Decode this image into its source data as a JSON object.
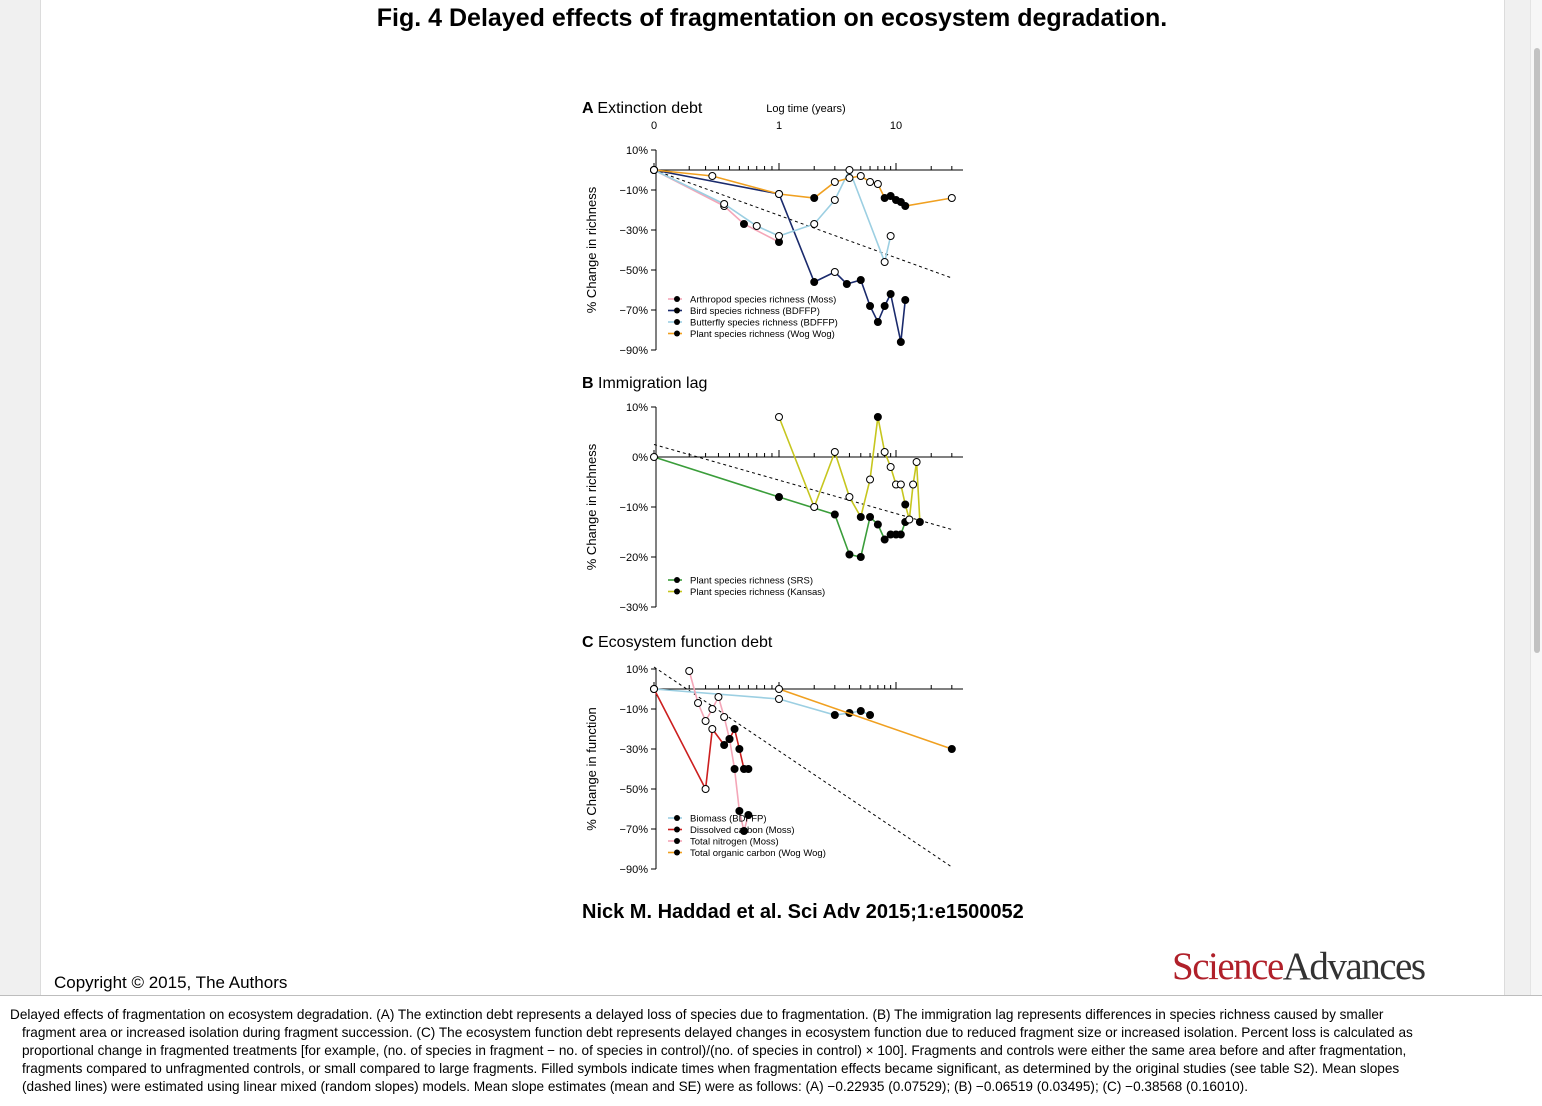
{
  "slide": {
    "title": "Fig. 4 Delayed effects of fragmentation on ecosystem degradation.",
    "citation": "Nick M. Haddad et al. Sci Adv 2015;1:e1500052",
    "copyright": "Copyright © 2015, The Authors",
    "logo_science": "Science",
    "logo_advances": "Advances"
  },
  "caption": {
    "text": "Delayed effects of fragmentation on ecosystem degradation. (A) The extinction debt represents a delayed loss of species due to fragmentation. (B) The immigration lag represents differences in species richness caused by smaller fragment area or increased isolation during fragment succession. (C) The ecosystem function debt represents delayed changes in ecosystem function due to reduced fragment size or increased isolation. Percent loss is calculated as proportional change in fragmented treatments [for example, (no. of species in fragment − no. of species in control)/(no. of species in control) × 100]. Fragments and controls were either the same area before and after fragmentation, fragments compared to unfragmented controls, or small compared to large fragments. Filled symbols indicate times when fragmentation effects became significant, as determined by the original studies (see table S2). Mean slopes (dashed lines) were estimated using linear mixed (random slopes) models. Mean slope estimates (mean and SE) were as follows: (A) −0.22935 (0.07529); (B) −0.06519 (0.03495); (C) −0.38568 (0.16010).",
    "lines": [
      "Delayed effects of fragmentation on ecosystem degradation. (A) The extinction debt represents a delayed loss of species due to fragmentation. (B) The immigration lag represents differences in species richness caused by smaller",
      "fragment area or increased isolation during fragment succession. (C) The ecosystem function debt represents delayed changes in ecosystem function due to reduced fragment size or increased isolation. Percent loss is calculated as",
      "proportional change in fragmented treatments [for example, (no. of species in fragment − no. of species in control)/(no. of species in control) × 100]. Fragments and controls were either the same area before and after fragmentation,",
      "fragments compared to unfragmented controls, or small compared to large fragments. Filled symbols indicate times when fragmentation effects became significant, as determined by the original studies (see table S2). Mean slopes",
      "(dashed lines) were estimated using linear mixed (random slopes) models. Mean slope estimates (mean and SE) were as follows: (A) −0.22935 (0.07529); (B) −0.06519 (0.03495); (C) −0.38568 (0.16010)."
    ]
  },
  "chart_data": [
    {
      "type": "line",
      "panel": "A",
      "title": "Extinction debt",
      "xlabel": "Log time (years)",
      "ylabel": "% Change in richness",
      "x_scale": "log",
      "x_ticks": [
        "0",
        "1",
        "10"
      ],
      "y_ticks": [
        "10%",
        "−10%",
        "−30%",
        "−50%",
        "−70%",
        "−90%"
      ],
      "ylim": [
        -90,
        10
      ],
      "xlim": [
        0,
        30
      ],
      "legend_position": "bottom-left",
      "series": [
        {
          "name": "Arthropod species richness (Moss)",
          "color": "#f4a6b8",
          "x": [
            0,
            0.35,
            0.55,
            1.0
          ],
          "y": [
            0,
            -18,
            -27,
            -36
          ],
          "filled": [
            false,
            false,
            true,
            true
          ]
        },
        {
          "name": "Bird species richness (BDFFP)",
          "color": "#1a2a6c",
          "x": [
            0,
            1.0,
            2.0,
            3.0,
            3.8,
            5.0,
            6.0,
            7.0,
            8.0,
            9.0,
            11.0,
            12.0
          ],
          "y": [
            0,
            -12,
            -56,
            -51,
            -57,
            -55,
            -68,
            -76,
            -68,
            -62,
            -86,
            -65
          ],
          "filled": [
            false,
            false,
            true,
            false,
            true,
            true,
            true,
            true,
            true,
            true,
            true,
            true
          ]
        },
        {
          "name": "Butterfly species richness (BDFFP)",
          "color": "#9ccfe2",
          "x": [
            0,
            0.35,
            0.7,
            1.0,
            2.0,
            3.0,
            4.0,
            8.0,
            9.0
          ],
          "y": [
            0,
            -17,
            -28,
            -33,
            -27,
            -15,
            0,
            -46,
            -33
          ],
          "filled": [
            false,
            false,
            false,
            false,
            false,
            false,
            false,
            false,
            false
          ]
        },
        {
          "name": "Plant species richness (Wog Wog)",
          "color": "#f0a020",
          "x": [
            0,
            0.25,
            1.0,
            2.0,
            3.0,
            4.0,
            5.0,
            6.0,
            7.0,
            8.0,
            9.0,
            10.0,
            11.0,
            12.0,
            30.0
          ],
          "y": [
            0,
            -3,
            -12,
            -14,
            -6,
            -4,
            -3,
            -6,
            -7,
            -14,
            -13,
            -15,
            -16,
            -18,
            -14
          ],
          "filled": [
            false,
            false,
            false,
            true,
            false,
            false,
            false,
            false,
            false,
            true,
            true,
            true,
            true,
            true,
            false
          ]
        }
      ],
      "mean_slope_line": {
        "from": [
          0,
          0
        ],
        "to": [
          30,
          -54
        ],
        "style": "dashed"
      }
    },
    {
      "type": "line",
      "panel": "B",
      "title": "Immigration lag",
      "ylabel": "% Change in richness",
      "x_scale": "log",
      "y_ticks": [
        "10%",
        "0%",
        "−10%",
        "−20%",
        "−30%"
      ],
      "ylim": [
        -30,
        10
      ],
      "xlim": [
        0,
        30
      ],
      "legend_position": "bottom-left",
      "series": [
        {
          "name": "Plant species richness (SRS)",
          "color": "#3a9d3a",
          "x": [
            0,
            1.0,
            3.0,
            4.0,
            5.0,
            6.0,
            7.0,
            8.0,
            9.0,
            10.0,
            11.0,
            12.0
          ],
          "y": [
            0,
            -8,
            -11.5,
            -19.5,
            -20,
            -12,
            -13.5,
            -16.5,
            -15.5,
            -15.5,
            -15.5,
            -13
          ],
          "filled": [
            false,
            true,
            true,
            true,
            true,
            true,
            true,
            true,
            true,
            true,
            true,
            true
          ]
        },
        {
          "name": "Plant species richness (Kansas)",
          "color": "#c6c61e",
          "x": [
            1.0,
            2.0,
            3.0,
            4.0,
            5.0,
            6.0,
            7.0,
            8.0,
            9.0,
            10.0,
            11.0,
            12.0,
            13.0,
            14.0,
            15.0,
            16.0
          ],
          "y": [
            8,
            -10,
            1,
            -8,
            -12,
            -4.5,
            8,
            1,
            -2,
            -5.5,
            -5.5,
            -9.5,
            -12.5,
            -5.5,
            -1,
            -13
          ],
          "filled": [
            false,
            false,
            false,
            false,
            true,
            false,
            true,
            false,
            false,
            false,
            false,
            true,
            false,
            false,
            false,
            true
          ]
        }
      ],
      "mean_slope_line": {
        "from": [
          0,
          2.5
        ],
        "to": [
          30,
          -14.5
        ],
        "style": "dashed"
      }
    },
    {
      "type": "line",
      "panel": "C",
      "title": "Ecosystem function debt",
      "ylabel": "% Change in function",
      "x_scale": "log",
      "y_ticks": [
        "10%",
        "−10%",
        "−30%",
        "−50%",
        "−70%",
        "−90%"
      ],
      "ylim": [
        -90,
        10
      ],
      "xlim": [
        0,
        30
      ],
      "legend_position": "bottom-left",
      "series": [
        {
          "name": "Biomass (BDFFP)",
          "color": "#9ccfe2",
          "x": [
            0,
            1.0,
            3.0,
            4.0,
            5.0,
            6.0
          ],
          "y": [
            0,
            -5,
            -13,
            -12,
            -11,
            -13
          ],
          "filled": [
            false,
            false,
            true,
            true,
            true,
            true
          ]
        },
        {
          "name": "Dissolved carbon (Moss)",
          "color": "#cc1f1f",
          "x": [
            0,
            0.2,
            0.25,
            0.35,
            0.4,
            0.45,
            0.5,
            0.55,
            0.6
          ],
          "y": [
            0,
            -50,
            -20,
            -28,
            -25,
            -20,
            -30,
            -40,
            -40
          ],
          "filled": [
            false,
            false,
            false,
            true,
            true,
            true,
            true,
            true,
            true
          ]
        },
        {
          "name": "Total nitrogen (Moss)",
          "color": "#f4a6b8",
          "x": [
            0.1,
            0.15,
            0.2,
            0.25,
            0.3,
            0.35,
            0.4,
            0.45,
            0.5,
            0.55,
            0.6
          ],
          "y": [
            9,
            -7,
            -16,
            -10,
            -4,
            -14,
            -25,
            -40,
            -61,
            -71,
            -63
          ],
          "filled": [
            false,
            false,
            false,
            false,
            false,
            false,
            true,
            true,
            true,
            true,
            true
          ]
        },
        {
          "name": "Total organic carbon (Wog Wog)",
          "color": "#f0a020",
          "x": [
            1.0,
            30.0
          ],
          "y": [
            0,
            -30
          ],
          "filled": [
            false,
            true
          ]
        }
      ],
      "mean_slope_line": {
        "from": [
          0,
          11
        ],
        "to": [
          30,
          -89
        ],
        "style": "dashed"
      }
    }
  ]
}
